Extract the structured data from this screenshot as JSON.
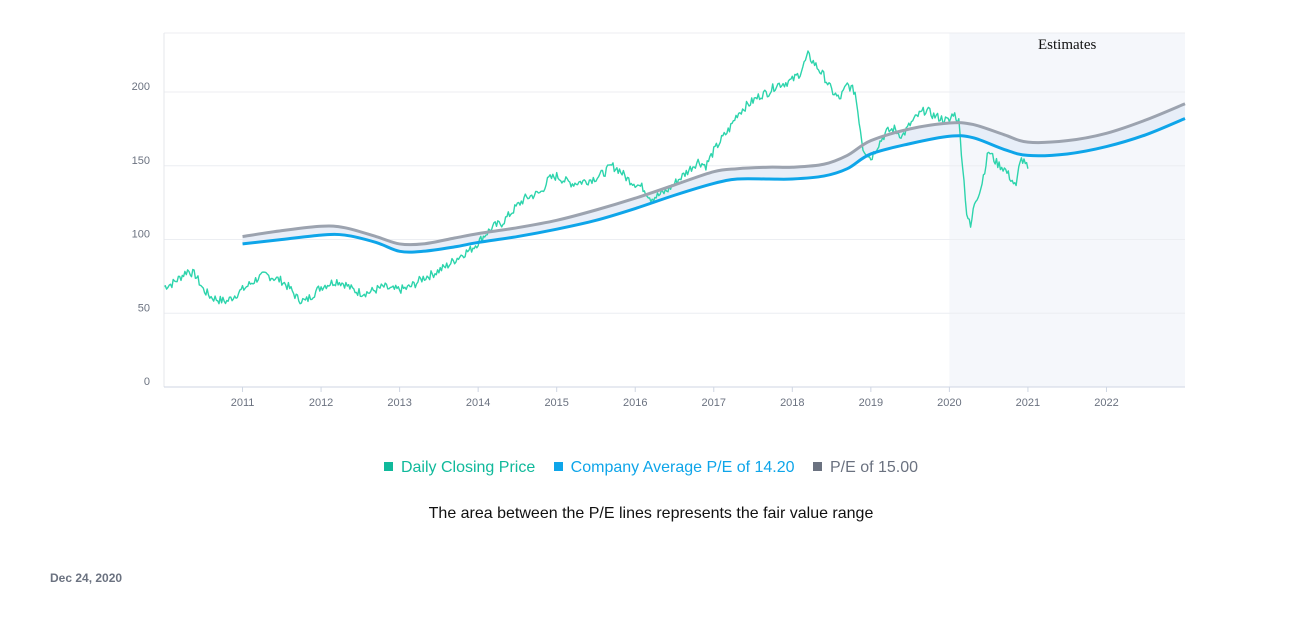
{
  "chart_data": {
    "type": "line",
    "y_ticks": [
      "0",
      "50",
      "100",
      "150",
      "200"
    ],
    "x_ticks": [
      "2011",
      "2012",
      "2013",
      "2014",
      "2015",
      "2016",
      "2017",
      "2018",
      "2019",
      "2020",
      "2021",
      "2022"
    ],
    "ylim": [
      0,
      240
    ],
    "xlim": [
      2010.0,
      2023.0
    ],
    "estimates_label": "Estimates",
    "estimates_start": 2020.0,
    "series": [
      {
        "name": "Daily Closing Price",
        "color": "#2dd4ac",
        "points": [
          [
            2010.0,
            68
          ],
          [
            2010.1,
            70
          ],
          [
            2010.2,
            74
          ],
          [
            2010.3,
            79
          ],
          [
            2010.4,
            76
          ],
          [
            2010.5,
            66
          ],
          [
            2010.6,
            61
          ],
          [
            2010.7,
            59
          ],
          [
            2010.8,
            58
          ],
          [
            2010.9,
            62
          ],
          [
            2011.0,
            66
          ],
          [
            2011.1,
            70
          ],
          [
            2011.2,
            74
          ],
          [
            2011.3,
            76
          ],
          [
            2011.4,
            74
          ],
          [
            2011.5,
            72
          ],
          [
            2011.6,
            67
          ],
          [
            2011.7,
            60
          ],
          [
            2011.8,
            58
          ],
          [
            2011.9,
            63
          ],
          [
            2012.0,
            68
          ],
          [
            2012.1,
            70
          ],
          [
            2012.2,
            72
          ],
          [
            2012.3,
            70
          ],
          [
            2012.4,
            66
          ],
          [
            2012.5,
            64
          ],
          [
            2012.6,
            64
          ],
          [
            2012.7,
            66
          ],
          [
            2012.8,
            68
          ],
          [
            2012.9,
            66
          ],
          [
            2013.0,
            66
          ],
          [
            2013.1,
            67
          ],
          [
            2013.2,
            70
          ],
          [
            2013.3,
            74
          ],
          [
            2013.4,
            76
          ],
          [
            2013.5,
            79
          ],
          [
            2013.6,
            82
          ],
          [
            2013.7,
            86
          ],
          [
            2013.8,
            90
          ],
          [
            2013.9,
            93
          ],
          [
            2014.0,
            98
          ],
          [
            2014.1,
            104
          ],
          [
            2014.2,
            109
          ],
          [
            2014.3,
            111
          ],
          [
            2014.4,
            117
          ],
          [
            2014.5,
            123
          ],
          [
            2014.6,
            128
          ],
          [
            2014.7,
            130
          ],
          [
            2014.8,
            132
          ],
          [
            2014.9,
            141
          ],
          [
            2015.0,
            143
          ],
          [
            2015.1,
            140
          ],
          [
            2015.2,
            138
          ],
          [
            2015.3,
            139
          ],
          [
            2015.4,
            140
          ],
          [
            2015.5,
            142
          ],
          [
            2015.6,
            145
          ],
          [
            2015.7,
            150
          ],
          [
            2015.8,
            147
          ],
          [
            2015.9,
            141
          ],
          [
            2016.0,
            138
          ],
          [
            2016.1,
            135
          ],
          [
            2016.2,
            128
          ],
          [
            2016.3,
            130
          ],
          [
            2016.4,
            133
          ],
          [
            2016.5,
            138
          ],
          [
            2016.6,
            143
          ],
          [
            2016.7,
            148
          ],
          [
            2016.8,
            153
          ],
          [
            2016.9,
            150
          ],
          [
            2017.0,
            160
          ],
          [
            2017.1,
            168
          ],
          [
            2017.2,
            175
          ],
          [
            2017.3,
            185
          ],
          [
            2017.4,
            190
          ],
          [
            2017.5,
            194
          ],
          [
            2017.6,
            198
          ],
          [
            2017.7,
            200
          ],
          [
            2017.8,
            205
          ],
          [
            2017.9,
            206
          ],
          [
            2018.0,
            208
          ],
          [
            2018.1,
            213
          ],
          [
            2018.2,
            225
          ],
          [
            2018.3,
            218
          ],
          [
            2018.4,
            211
          ],
          [
            2018.5,
            201
          ],
          [
            2018.6,
            195
          ],
          [
            2018.7,
            205
          ],
          [
            2018.8,
            200
          ],
          [
            2018.9,
            162
          ],
          [
            2019.0,
            155
          ],
          [
            2019.1,
            165
          ],
          [
            2019.2,
            173
          ],
          [
            2019.3,
            175
          ],
          [
            2019.4,
            170
          ],
          [
            2019.5,
            178
          ],
          [
            2019.6,
            184
          ],
          [
            2019.7,
            188
          ],
          [
            2019.8,
            184
          ],
          [
            2019.9,
            182
          ],
          [
            2020.0,
            180
          ],
          [
            2020.05,
            186
          ],
          [
            2020.12,
            180
          ],
          [
            2020.17,
            150
          ],
          [
            2020.22,
            118
          ],
          [
            2020.27,
            108
          ],
          [
            2020.32,
            125
          ],
          [
            2020.4,
            135
          ],
          [
            2020.5,
            160
          ],
          [
            2020.6,
            152
          ],
          [
            2020.7,
            148
          ],
          [
            2020.8,
            140
          ],
          [
            2020.85,
            135
          ],
          [
            2020.9,
            155
          ],
          [
            2020.95,
            152
          ],
          [
            2021.0,
            148
          ]
        ]
      },
      {
        "name": "Company Average P/E of 14.20",
        "color": "#0ea5e9",
        "points": [
          [
            2011.0,
            97
          ],
          [
            2011.5,
            100
          ],
          [
            2012.0,
            103
          ],
          [
            2012.3,
            103
          ],
          [
            2012.7,
            98
          ],
          [
            2013.0,
            92
          ],
          [
            2013.3,
            92
          ],
          [
            2013.7,
            95
          ],
          [
            2014.0,
            98
          ],
          [
            2014.5,
            102
          ],
          [
            2015.0,
            107
          ],
          [
            2015.5,
            113
          ],
          [
            2016.0,
            121
          ],
          [
            2016.5,
            130
          ],
          [
            2017.0,
            138
          ],
          [
            2017.3,
            141
          ],
          [
            2017.7,
            141
          ],
          [
            2018.0,
            141
          ],
          [
            2018.4,
            143
          ],
          [
            2018.7,
            148
          ],
          [
            2019.0,
            158
          ],
          [
            2019.5,
            165
          ],
          [
            2020.0,
            170
          ],
          [
            2020.3,
            169
          ],
          [
            2020.7,
            161
          ],
          [
            2021.0,
            157
          ],
          [
            2021.5,
            158
          ],
          [
            2022.0,
            163
          ],
          [
            2022.5,
            171
          ],
          [
            2023.0,
            182
          ]
        ]
      },
      {
        "name": "P/E of 15.00",
        "color": "#9ca3af",
        "points": [
          [
            2011.0,
            102
          ],
          [
            2011.5,
            106
          ],
          [
            2012.0,
            109
          ],
          [
            2012.3,
            108
          ],
          [
            2012.7,
            102
          ],
          [
            2013.0,
            97
          ],
          [
            2013.3,
            97
          ],
          [
            2013.7,
            101
          ],
          [
            2014.0,
            104
          ],
          [
            2014.5,
            108
          ],
          [
            2015.0,
            113
          ],
          [
            2015.5,
            120
          ],
          [
            2016.0,
            128
          ],
          [
            2016.5,
            137
          ],
          [
            2017.0,
            146
          ],
          [
            2017.3,
            148
          ],
          [
            2017.7,
            149
          ],
          [
            2018.0,
            149
          ],
          [
            2018.4,
            151
          ],
          [
            2018.7,
            157
          ],
          [
            2019.0,
            167
          ],
          [
            2019.5,
            175
          ],
          [
            2020.0,
            179
          ],
          [
            2020.3,
            178
          ],
          [
            2020.7,
            171
          ],
          [
            2021.0,
            166
          ],
          [
            2021.5,
            167
          ],
          [
            2022.0,
            172
          ],
          [
            2022.5,
            181
          ],
          [
            2023.0,
            192
          ]
        ]
      }
    ]
  },
  "legend": {
    "items": [
      {
        "label": "Daily Closing Price",
        "color": "#10b99b"
      },
      {
        "label": "Company Average P/E of 14.20",
        "color": "#0ea5e9"
      },
      {
        "label": "P/E of 15.00",
        "color": "#6b7280"
      }
    ]
  },
  "note": "The area between the P/E lines represents the fair value range",
  "date": "Dec 24, 2020"
}
